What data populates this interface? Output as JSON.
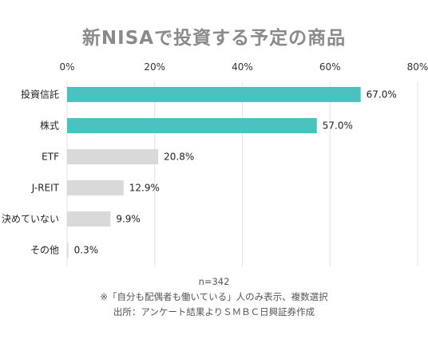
{
  "chart_data": {
    "type": "bar",
    "orientation": "horizontal",
    "title": "新NISAで投資する予定の商品",
    "categories": [
      "投資信託",
      "株式",
      "ETF",
      "J-REIT",
      "決めていない",
      "その他"
    ],
    "values": [
      67.0,
      57.0,
      20.8,
      12.9,
      9.9,
      0.3
    ],
    "value_labels": [
      "67.0%",
      "57.0%",
      "20.8%",
      "12.9%",
      "9.9%",
      "0.3%"
    ],
    "highlight_count": 2,
    "x_ticks": [
      "0%",
      "20%",
      "40%",
      "60%",
      "80%"
    ],
    "xlim": [
      0,
      80
    ],
    "grid": true,
    "legend": "none",
    "colors": {
      "highlight": "#4cc2c0",
      "default": "#d9d9d9",
      "grid": "#e3e3e3"
    }
  },
  "notes": [
    "n=342",
    "※「自分も配偶者も働いている」人のみ表示、複数選択",
    "出所：アンケート結果よりＳＭＢＣ日興証券作成"
  ]
}
